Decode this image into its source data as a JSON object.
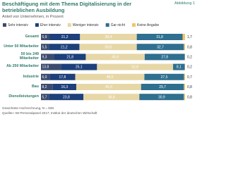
{
  "chart_data": {
    "type": "stacked-barh",
    "title": "Beschäftigung mit dem Thema Digitalisierung in der betrieblichen Ausbildung",
    "figure_label": "Abbildung 1",
    "subtitle": "Anteil von Unternehmen, in Prozent",
    "categories": [
      "Gesamt",
      "Unter 50 Mitarbeiter",
      "50 bis 249 Mitarbeiter",
      "Ab 250 Mitarbeiter",
      "Industrie",
      "Bau",
      "Dienstleistungen"
    ],
    "series": [
      {
        "name": "Sehr intensiv",
        "color": "#3c4b6e",
        "values": [
          5.9,
          5.5,
          9.3,
          13.8,
          6.0,
          8.2,
          5.7
        ],
        "value_labels": [
          "5,9",
          "5,5",
          "9,3",
          "13,8",
          "6,0",
          "8,2",
          "5,7"
        ]
      },
      {
        "name": "Eher intensiv",
        "color": "#1d3f7a",
        "values": [
          21.2,
          21.2,
          21.8,
          25.1,
          17.8,
          16.3,
          23.8
        ],
        "value_labels": [
          "21,2",
          "21,2",
          "21,8",
          "25,1",
          "17,8",
          "16,3",
          "23,8"
        ]
      },
      {
        "name": "Weniger intensiv",
        "color": "#e6d7a6",
        "values": [
          39.4,
          39.8,
          40.9,
          52.8,
          48.0,
          45.0,
          38.8
        ],
        "value_labels": [
          "39,4",
          "39,8",
          "40,9",
          "52,8",
          "48,0",
          "45,0",
          "38,8"
        ]
      },
      {
        "name": "Gar nicht",
        "color": "#2f6f8f",
        "values": [
          31.8,
          32.7,
          27.8,
          8.1,
          27.5,
          29.7,
          30.9
        ],
        "value_labels": [
          "31,8",
          "32,7",
          "27,8",
          "8,1",
          "27,5",
          "29,7",
          "30,9"
        ]
      },
      {
        "name": "Keine Angabe",
        "color": "#f2c46a",
        "values": [
          1.7,
          0.8,
          0.2,
          0.2,
          0.7,
          0.8,
          0.8
        ],
        "value_labels": [
          "1,7",
          "0,8",
          "0,2",
          "0,2",
          "0,7",
          "0,8",
          "0,8"
        ]
      }
    ],
    "xlim": [
      0,
      100
    ],
    "notes": [
      "Gewichtete Hochrechnung, N = 838.",
      "Quellen: IW-Personalpanel 2017; Institut der deutschen Wirtschaft"
    ]
  }
}
